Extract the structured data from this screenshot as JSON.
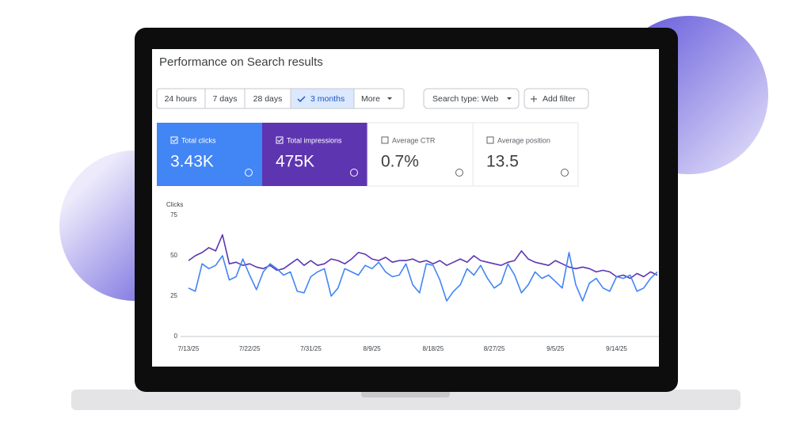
{
  "title": "Performance on Search results",
  "filters": [
    "24 hours",
    "7 days",
    "28 days",
    "3 months",
    "More",
    "Search type: Web",
    "Add filter"
  ],
  "metrics": [
    {
      "label": "Total clicks",
      "value": "3.43K"
    },
    {
      "label": "Total impressions",
      "value": "475K"
    },
    {
      "label": "Average CTR",
      "value": "0.7%"
    },
    {
      "label": "Average position",
      "value": "13.5"
    }
  ],
  "chart_data": {
    "type": "line",
    "y_label": "Clicks",
    "categories": [
      "7/13/25",
      null,
      null,
      null,
      null,
      null,
      null,
      null,
      null,
      "7/22/25",
      null,
      null,
      null,
      null,
      null,
      null,
      null,
      null,
      "7/31/25",
      null,
      null,
      null,
      null,
      null,
      null,
      null,
      null,
      "8/9/25",
      null,
      null,
      null,
      null,
      null,
      null,
      null,
      null,
      "8/18/25",
      null,
      null,
      null,
      null,
      null,
      null,
      null,
      null,
      "8/27/25",
      null,
      null,
      null,
      null,
      null,
      null,
      null,
      null,
      "9/5/25",
      null,
      null,
      null,
      null,
      null,
      null,
      null,
      null,
      "9/14/25",
      null,
      null,
      null,
      null,
      null,
      null
    ],
    "series": [
      {
        "color": "#5e35b1",
        "values": [
          47,
          50,
          52,
          55,
          53,
          63,
          45,
          46,
          44,
          45,
          43,
          42,
          44,
          41,
          42,
          45,
          48,
          44,
          47,
          44,
          45,
          48,
          47,
          45,
          48,
          52,
          51,
          48,
          47,
          49,
          46,
          47,
          47,
          48,
          46,
          47,
          45,
          47,
          44,
          46,
          48,
          46,
          50,
          47,
          46,
          45,
          44,
          46,
          47,
          53,
          48,
          46,
          45,
          44,
          47,
          45,
          43,
          42,
          43,
          42,
          40,
          41,
          40,
          37,
          38,
          36,
          39,
          37,
          40,
          38
        ]
      },
      {
        "color": "#4285f4",
        "values": [
          30,
          28,
          45,
          42,
          44,
          50,
          35,
          37,
          48,
          38,
          29,
          40,
          45,
          42,
          38,
          40,
          28,
          27,
          37,
          40,
          42,
          25,
          30,
          42,
          40,
          38,
          44,
          42,
          46,
          40,
          37,
          38,
          45,
          32,
          27,
          45,
          44,
          35,
          22,
          28,
          32,
          42,
          38,
          44,
          36,
          30,
          33,
          45,
          38,
          27,
          32,
          40,
          36,
          38,
          34,
          30,
          52,
          32,
          22,
          33,
          36,
          30,
          28,
          37,
          36,
          38,
          28,
          30,
          36,
          40
        ]
      }
    ],
    "ylim": [
      0,
      75
    ],
    "yticks": [
      0,
      25,
      50,
      75
    ]
  }
}
